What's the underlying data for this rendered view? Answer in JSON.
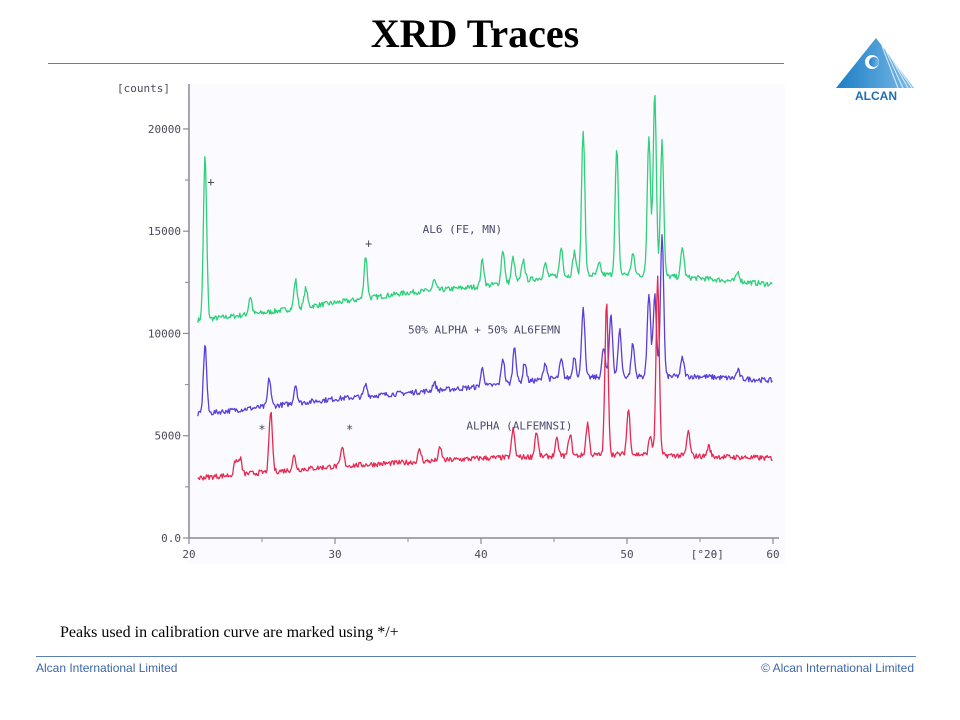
{
  "slide": {
    "title": "XRD Traces",
    "caption": "Peaks used in calibration curve are marked using */+",
    "footer_left": "Alcan International Limited",
    "footer_right": "© Alcan International Limited",
    "logo_text": "ALCAN"
  },
  "colors": {
    "accent": "#3c66a8",
    "green": "#2fd07a",
    "blue": "#5a3fd8",
    "red": "#e8294f",
    "axis": "#8a8a9a",
    "paper": "#fbfbff"
  },
  "chart_data": {
    "type": "line",
    "ylabel": "[counts]",
    "xlabel": "[°2θ]",
    "xlim": [
      20,
      60
    ],
    "ylim": [
      0,
      22000
    ],
    "xticks": [
      20,
      30,
      40,
      50,
      60
    ],
    "xtick_labels": [
      "20",
      "30",
      "40",
      "50",
      "60"
    ],
    "yticks": [
      0,
      5000,
      10000,
      15000,
      20000
    ],
    "ytick_labels": [
      "0.0",
      "5000",
      "10000",
      "15000",
      "20000"
    ],
    "series": [
      {
        "name": "AL6 (FE, MN)",
        "color": "#2fd07a",
        "baseline": [
          [
            20,
            10600
          ],
          [
            25,
            11000
          ],
          [
            30,
            11500
          ],
          [
            35,
            12000
          ],
          [
            40,
            12300
          ],
          [
            45,
            12800
          ],
          [
            50,
            12900
          ],
          [
            55,
            12700
          ],
          [
            60,
            12400
          ]
        ],
        "peaks": [
          [
            21.1,
            18700
          ],
          [
            24.2,
            11800
          ],
          [
            27.3,
            12600
          ],
          [
            28.0,
            12200
          ],
          [
            32.1,
            13800
          ],
          [
            36.8,
            12600
          ],
          [
            40.1,
            13600
          ],
          [
            41.5,
            14100
          ],
          [
            42.2,
            13700
          ],
          [
            42.9,
            13600
          ],
          [
            44.4,
            13400
          ],
          [
            45.5,
            14200
          ],
          [
            46.4,
            14000
          ],
          [
            47.0,
            20000
          ],
          [
            48.1,
            13400
          ],
          [
            49.3,
            19000
          ],
          [
            50.4,
            13900
          ],
          [
            51.5,
            19700
          ],
          [
            51.9,
            21800
          ],
          [
            52.4,
            19500
          ],
          [
            53.8,
            14200
          ],
          [
            57.6,
            13000
          ]
        ]
      },
      {
        "name": "50% ALPHA + 50% AL6FEMN",
        "color": "#5a3fd8",
        "baseline": [
          [
            20,
            6000
          ],
          [
            25,
            6400
          ],
          [
            30,
            6800
          ],
          [
            35,
            7100
          ],
          [
            40,
            7400
          ],
          [
            45,
            7800
          ],
          [
            50,
            7900
          ],
          [
            55,
            7900
          ],
          [
            60,
            7700
          ]
        ],
        "peaks": [
          [
            21.1,
            9500
          ],
          [
            25.5,
            7800
          ],
          [
            27.3,
            7500
          ],
          [
            32.1,
            7500
          ],
          [
            36.8,
            7600
          ],
          [
            40.1,
            8300
          ],
          [
            41.5,
            8800
          ],
          [
            42.3,
            9400
          ],
          [
            43.0,
            8600
          ],
          [
            44.4,
            8600
          ],
          [
            45.5,
            8700
          ],
          [
            46.4,
            8900
          ],
          [
            47.0,
            11300
          ],
          [
            48.4,
            9300
          ],
          [
            48.9,
            11000
          ],
          [
            49.5,
            10200
          ],
          [
            50.4,
            9500
          ],
          [
            51.5,
            12000
          ],
          [
            51.9,
            11900
          ],
          [
            52.4,
            14900
          ],
          [
            53.8,
            8800
          ],
          [
            57.6,
            8200
          ]
        ]
      },
      {
        "name": "ALPHA (ALFEMNSI)",
        "color": "#e8294f",
        "baseline": [
          [
            20,
            2900
          ],
          [
            25,
            3200
          ],
          [
            30,
            3500
          ],
          [
            35,
            3700
          ],
          [
            40,
            3900
          ],
          [
            45,
            4000
          ],
          [
            50,
            4100
          ],
          [
            55,
            4000
          ],
          [
            60,
            3900
          ]
        ],
        "peaks": [
          [
            23.2,
            3800
          ],
          [
            23.5,
            3900
          ],
          [
            25.6,
            6200
          ],
          [
            27.2,
            4000
          ],
          [
            30.5,
            4400
          ],
          [
            35.8,
            4300
          ],
          [
            37.2,
            4400
          ],
          [
            42.2,
            5300
          ],
          [
            43.8,
            5200
          ],
          [
            45.2,
            4800
          ],
          [
            46.1,
            5100
          ],
          [
            47.3,
            5600
          ],
          [
            48.6,
            11500
          ],
          [
            50.1,
            6300
          ],
          [
            51.6,
            5000
          ],
          [
            52.1,
            12700
          ],
          [
            54.2,
            5200
          ],
          [
            55.6,
            4500
          ]
        ]
      }
    ],
    "annotations": [
      {
        "text": "+",
        "x": 21.5,
        "y": 17200
      },
      {
        "text": "+",
        "x": 32.3,
        "y": 14200
      },
      {
        "text": "*",
        "x": 25.0,
        "y": 5100
      },
      {
        "text": "*",
        "x": 31.0,
        "y": 5100
      }
    ]
  }
}
